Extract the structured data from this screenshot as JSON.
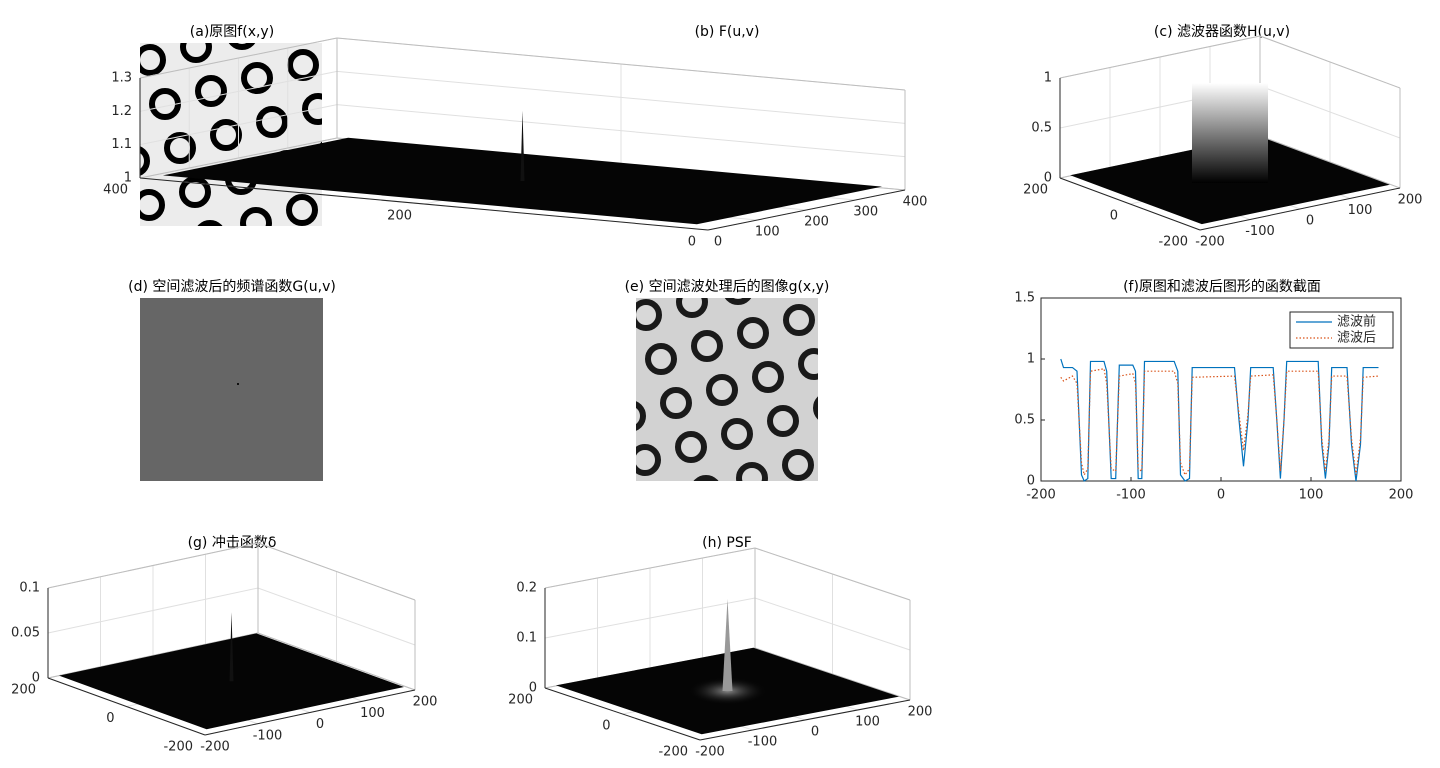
{
  "chart_data": [
    {
      "type": "image",
      "title": "(a)原图f(x,y)"
    },
    {
      "type": "surface",
      "title": "(b) F(u,v)",
      "xlim": [
        0,
        400
      ],
      "xticks": [
        0,
        100,
        200,
        300,
        400
      ],
      "ylim": [
        0,
        400
      ],
      "yticks": [
        0,
        200,
        400
      ],
      "zlim": [
        1,
        1.3
      ],
      "zticks": [
        1,
        1.1,
        1.2,
        1.3
      ],
      "peak": 1.22
    },
    {
      "type": "surface",
      "title": "(c) 滤波器函数H(u,v)",
      "xlim": [
        -200,
        200
      ],
      "xticks": [
        -200,
        -100,
        0,
        100,
        200
      ],
      "ylim": [
        -200,
        200
      ],
      "yticks": [
        -200,
        0,
        200
      ],
      "zlim": [
        0,
        1
      ],
      "zticks": [
        0,
        0.5,
        1
      ],
      "peak": 1
    },
    {
      "type": "image",
      "title": "(d) 空间滤波后的频谱函数G(u,v)"
    },
    {
      "type": "image",
      "title": "(e) 空间滤波处理后的图像g(x,y)"
    },
    {
      "type": "line",
      "title": "(f)原图和滤波后图形的函数截面",
      "xlim": [
        -200,
        200
      ],
      "xticks": [
        -200,
        -100,
        0,
        100,
        200
      ],
      "ylim": [
        0,
        1.5
      ],
      "yticks": [
        0,
        0.5,
        1,
        1.5
      ],
      "legend": "upper right",
      "x": [
        -178,
        -175,
        -165,
        -160,
        -155,
        -152,
        -148,
        -145,
        -130,
        -127,
        -122,
        -117,
        -113,
        -98,
        -95,
        -92,
        -88,
        -85,
        -52,
        -48,
        -45,
        -40,
        -35,
        -32,
        15,
        20,
        25,
        30,
        33,
        58,
        62,
        66,
        70,
        73,
        108,
        112,
        116,
        120,
        123,
        140,
        145,
        150,
        155,
        158,
        175
      ],
      "series": [
        {
          "name": "滤波前",
          "color": "#0072bd",
          "dash": false,
          "values": [
            1.0,
            0.93,
            0.93,
            0.9,
            0.05,
            0.0,
            0.02,
            0.98,
            0.98,
            0.9,
            0.02,
            0.02,
            0.95,
            0.95,
            0.9,
            0.02,
            0.02,
            0.98,
            0.98,
            0.9,
            0.05,
            0.0,
            0.02,
            0.93,
            0.93,
            0.5,
            0.12,
            0.5,
            0.93,
            0.93,
            0.5,
            0.02,
            0.5,
            0.98,
            0.98,
            0.3,
            0.02,
            0.3,
            0.93,
            0.93,
            0.3,
            0.0,
            0.3,
            0.93,
            0.93
          ]
        },
        {
          "name": "滤波后",
          "color": "#d95319",
          "dash": true,
          "values": [
            0.85,
            0.82,
            0.86,
            0.8,
            0.15,
            0.05,
            0.1,
            0.9,
            0.92,
            0.8,
            0.1,
            0.08,
            0.86,
            0.88,
            0.8,
            0.1,
            0.08,
            0.9,
            0.9,
            0.8,
            0.15,
            0.05,
            0.1,
            0.85,
            0.86,
            0.55,
            0.25,
            0.55,
            0.86,
            0.87,
            0.5,
            0.08,
            0.5,
            0.9,
            0.9,
            0.35,
            0.08,
            0.35,
            0.86,
            0.86,
            0.35,
            0.05,
            0.35,
            0.85,
            0.86
          ]
        }
      ]
    },
    {
      "type": "surface",
      "title": "(g) 冲击函数δ",
      "xlim": [
        -200,
        200
      ],
      "xticks": [
        -200,
        -100,
        0,
        100,
        200
      ],
      "ylim": [
        -200,
        200
      ],
      "yticks": [
        -200,
        0,
        200
      ],
      "zlim": [
        0,
        0.1
      ],
      "zticks": [
        0,
        0.05,
        0.1
      ],
      "peak": 0.08
    },
    {
      "type": "surface",
      "title": "(h) PSF",
      "xlim": [
        -200,
        200
      ],
      "xticks": [
        -200,
        -100,
        0,
        100,
        200
      ],
      "ylim": [
        -200,
        200
      ],
      "yticks": [
        -200,
        0,
        200
      ],
      "zlim": [
        0,
        0.2
      ],
      "zticks": [
        0,
        0.1,
        0.2
      ],
      "peak": 0.19
    }
  ]
}
